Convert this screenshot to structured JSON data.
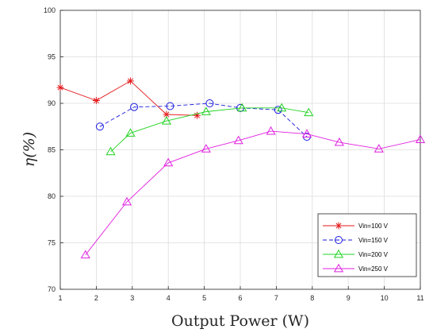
{
  "chart_data": {
    "type": "line",
    "title": "",
    "xlabel": "Output Power (W)",
    "ylabel": "η(%)",
    "xlim": [
      1,
      11
    ],
    "ylim": [
      70,
      100
    ],
    "xticks": [
      1,
      2,
      3,
      4,
      5,
      6,
      7,
      8,
      9,
      10,
      11
    ],
    "yticks": [
      70,
      75,
      80,
      85,
      90,
      95,
      100
    ],
    "grid": true,
    "legend_position": "bottom-right",
    "series": [
      {
        "name": "Vin=100 V",
        "color": "#e41a1c",
        "marker": "asterisk",
        "line": "solid",
        "x": [
          1.0,
          2.0,
          2.95,
          3.95,
          4.8
        ],
        "y": [
          91.7,
          90.3,
          92.4,
          88.8,
          88.7
        ]
      },
      {
        "name": "Vin=150 V",
        "color": "#1a1adb",
        "marker": "circle",
        "line": "dashed",
        "x": [
          2.1,
          3.05,
          4.05,
          5.15,
          6.0,
          7.05,
          7.85
        ],
        "y": [
          87.5,
          89.6,
          89.7,
          90.0,
          89.5,
          89.3,
          86.4
        ]
      },
      {
        "name": "Vin=200 V",
        "color": "#22d322",
        "marker": "triangle",
        "line": "solid",
        "x": [
          2.4,
          2.95,
          3.95,
          5.05,
          6.05,
          7.15,
          7.9
        ],
        "y": [
          84.8,
          86.8,
          88.1,
          89.1,
          89.5,
          89.5,
          89.0
        ]
      },
      {
        "name": "Vin=250 V",
        "color": "#e020e0",
        "marker": "triangle",
        "line": "solid",
        "x": [
          1.7,
          2.85,
          4.0,
          5.05,
          5.95,
          6.85,
          7.85,
          8.75,
          9.85,
          11.0
        ],
        "y": [
          73.7,
          79.4,
          83.6,
          85.1,
          86.0,
          87.0,
          86.7,
          85.8,
          85.1,
          86.1
        ]
      }
    ]
  }
}
